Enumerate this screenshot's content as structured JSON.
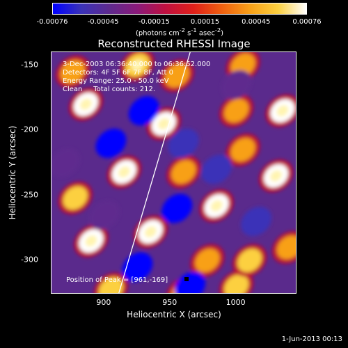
{
  "colorbar": {
    "tick_labels": [
      "-0.00076",
      "-0.00045",
      "-0.00015",
      "0.00015",
      "0.00045",
      "0.00076"
    ],
    "units_html": "(photons cm<sup>-2</sup> s<sup>-1</sup> asec<sup>-2</sup>)"
  },
  "info": {
    "time_range": "3-Dec-2003 06:36:40.000 to 06:36:52.000",
    "detectors": "Detectors: 4F 5F 6F 7F 8F, Att 0",
    "energy": "Energy Range: 25.0 - 50.0 keV",
    "clean": "Clean     Total counts: 212.",
    "peak": "Position of Peak = [961,-169]"
  },
  "footer": {
    "timestamp": "1-Jun-2013 00:13"
  },
  "chart_data": {
    "type": "heatmap",
    "title": "Reconstructed RHESSI Image",
    "xlabel": "Heliocentric X (arcsec)",
    "ylabel": "Heliocentric Y (arcsec)",
    "xlim": [
      860,
      1045
    ],
    "ylim": [
      -325,
      -140
    ],
    "x_ticks": [
      900,
      950,
      1000
    ],
    "y_ticks": [
      -150,
      -200,
      -250,
      -300
    ],
    "color_range": [
      -0.00076,
      0.00076
    ],
    "colormap_stops": [
      "#0000ff",
      "#3a32b8",
      "#5e2a8e",
      "#8a1a7a",
      "#c01040",
      "#e0201a",
      "#f06010",
      "#f8a018",
      "#fcd040",
      "#ffffff"
    ],
    "limb_line": [
      [
        911,
        -325
      ],
      [
        965,
        -140
      ]
    ],
    "peak": {
      "x": 961,
      "y": -169
    },
    "blobs": [
      {
        "x": 886,
        "y": -180,
        "v": 0.00076
      },
      {
        "x": 876,
        "y": -155,
        "v": 0.0005
      },
      {
        "x": 925,
        "y": -150,
        "v": 0.00062
      },
      {
        "x": 955,
        "y": -158,
        "v": 0.0005
      },
      {
        "x": 945,
        "y": -195,
        "v": 0.00075
      },
      {
        "x": 915,
        "y": -232,
        "v": 0.0007
      },
      {
        "x": 878,
        "y": -252,
        "v": 0.0006
      },
      {
        "x": 960,
        "y": -232,
        "v": 0.00045
      },
      {
        "x": 890,
        "y": -285,
        "v": 0.00076
      },
      {
        "x": 935,
        "y": -278,
        "v": 0.0007
      },
      {
        "x": 985,
        "y": -258,
        "v": 0.0007
      },
      {
        "x": 905,
        "y": -322,
        "v": 0.0006
      },
      {
        "x": 978,
        "y": -300,
        "v": 0.0004
      },
      {
        "x": 1000,
        "y": -320,
        "v": 0.00055
      },
      {
        "x": 1010,
        "y": -300,
        "v": 0.0006
      },
      {
        "x": 1030,
        "y": -235,
        "v": 0.00068
      },
      {
        "x": 1035,
        "y": -185,
        "v": 0.00072
      },
      {
        "x": 1000,
        "y": -185,
        "v": 0.00045
      },
      {
        "x": 1005,
        "y": -215,
        "v": 0.0004
      },
      {
        "x": 1040,
        "y": -290,
        "v": 0.0005
      },
      {
        "x": 960,
        "y": -325,
        "v": 0.0005
      },
      {
        "x": 1005,
        "y": -150,
        "v": 0.00045
      },
      {
        "x": 905,
        "y": -210,
        "v": -0.00076
      },
      {
        "x": 930,
        "y": -185,
        "v": -0.0007
      },
      {
        "x": 955,
        "y": -260,
        "v": -0.00072
      },
      {
        "x": 925,
        "y": -305,
        "v": -0.0007
      },
      {
        "x": 965,
        "y": -320,
        "v": -0.00076
      },
      {
        "x": 985,
        "y": -230,
        "v": -0.0006
      },
      {
        "x": 1015,
        "y": -270,
        "v": -0.0006
      },
      {
        "x": 1000,
        "y": -165,
        "v": -0.0005
      },
      {
        "x": 870,
        "y": -225,
        "v": -0.0005
      },
      {
        "x": 900,
        "y": -265,
        "v": -0.0005
      },
      {
        "x": 960,
        "y": -210,
        "v": -0.0006
      }
    ]
  }
}
